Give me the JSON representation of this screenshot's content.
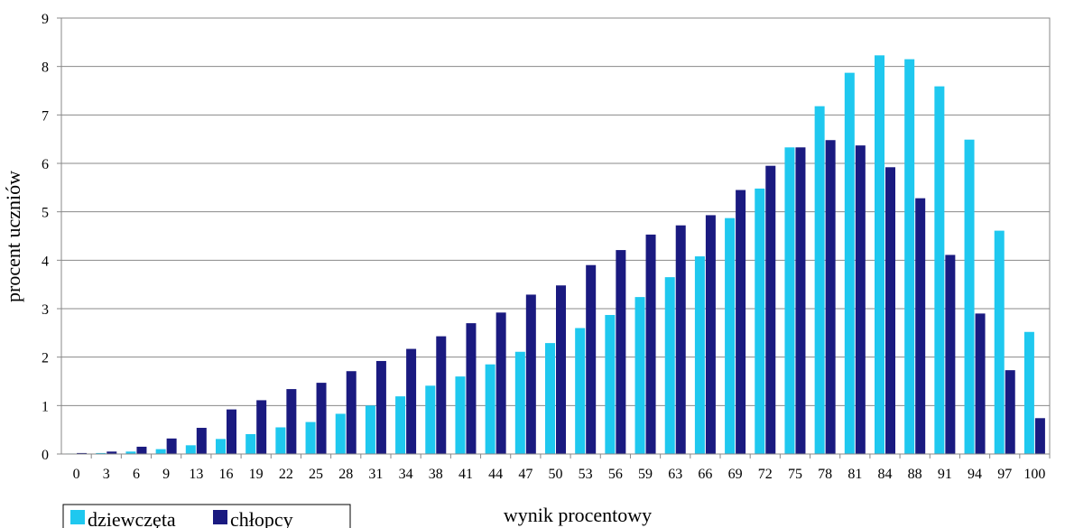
{
  "chart_data": {
    "type": "bar",
    "title": "",
    "xlabel": "wynik procentowy",
    "ylabel": "procent uczniów",
    "ylim": [
      0,
      9
    ],
    "yticks": [
      "0",
      "1",
      "2",
      "3",
      "4",
      "5",
      "6",
      "7",
      "8",
      "9"
    ],
    "grid": true,
    "legend_position": "bottom-left",
    "categories": [
      "0",
      "3",
      "6",
      "9",
      "13",
      "16",
      "19",
      "22",
      "25",
      "28",
      "31",
      "34",
      "38",
      "41",
      "44",
      "47",
      "50",
      "53",
      "56",
      "59",
      "63",
      "66",
      "69",
      "72",
      "75",
      "78",
      "81",
      "84",
      "88",
      "91",
      "94",
      "97",
      "100"
    ],
    "series": [
      {
        "name": "dziewczęta",
        "color": "#1fc8ef",
        "values": [
          0.01,
          0.02,
          0.05,
          0.1,
          0.18,
          0.31,
          0.41,
          0.55,
          0.66,
          0.83,
          1.0,
          1.19,
          1.41,
          1.6,
          1.85,
          2.11,
          2.29,
          2.6,
          2.87,
          3.24,
          3.65,
          4.08,
          4.87,
          5.48,
          6.33,
          7.18,
          7.87,
          8.23,
          8.15,
          7.59,
          6.49,
          4.61,
          2.52
        ]
      },
      {
        "name": "chłopcy",
        "color": "#1a1a80",
        "values": [
          0.02,
          0.05,
          0.15,
          0.32,
          0.54,
          0.92,
          1.11,
          1.34,
          1.47,
          1.71,
          1.92,
          2.17,
          2.43,
          2.7,
          2.92,
          3.29,
          3.48,
          3.9,
          4.21,
          4.53,
          4.72,
          4.93,
          5.45,
          5.95,
          6.33,
          6.48,
          6.37,
          5.92,
          5.28,
          4.11,
          2.9,
          1.73,
          0.74
        ]
      }
    ]
  }
}
